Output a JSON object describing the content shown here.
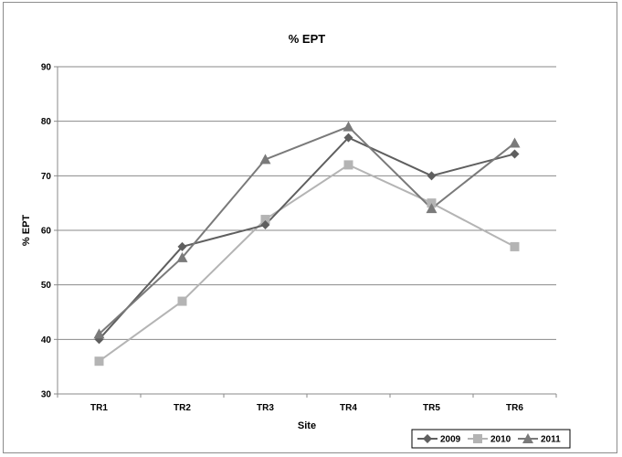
{
  "chart_data": {
    "type": "line",
    "title": "% EPT",
    "xlabel": "Site",
    "ylabel": "% EPT",
    "categories": [
      "TR1",
      "TR2",
      "TR3",
      "TR4",
      "TR5",
      "TR6"
    ],
    "ylim": [
      30,
      90
    ],
    "yticks": [
      30,
      40,
      50,
      60,
      70,
      80,
      90
    ],
    "grid": true,
    "legend_position": "bottom-right",
    "series": [
      {
        "name": "2009",
        "values": [
          40,
          57,
          61,
          77,
          70,
          74
        ],
        "color": "#5f5f5f",
        "marker": "diamond"
      },
      {
        "name": "2010",
        "values": [
          36,
          47,
          62,
          72,
          65,
          57
        ],
        "color": "#b4b4b4",
        "marker": "square"
      },
      {
        "name": "2011",
        "values": [
          41,
          55,
          73,
          79,
          64,
          76
        ],
        "color": "#7a7a7a",
        "marker": "triangle"
      }
    ]
  }
}
